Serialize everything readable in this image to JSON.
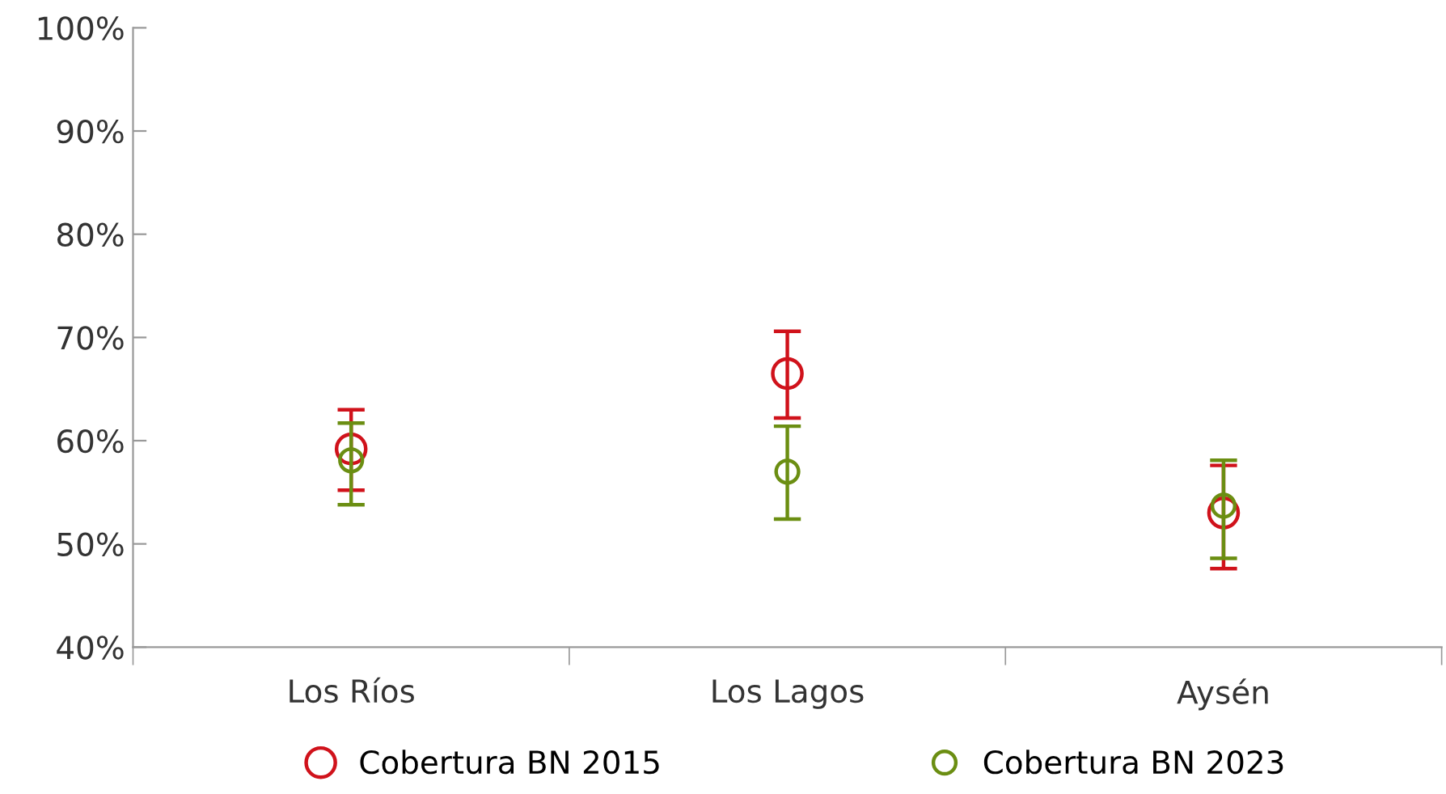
{
  "chart_data": {
    "type": "scatter",
    "categories": [
      "Los Ríos",
      "Los Lagos",
      "Aysén"
    ],
    "series": [
      {
        "name": "Cobertura BN 2015",
        "color": "#d0121b",
        "values": [
          59.2,
          66.5,
          53.0
        ],
        "errors": [
          [
            55.2,
            63.0
          ],
          [
            62.2,
            70.6
          ],
          [
            47.6,
            57.6
          ]
        ]
      },
      {
        "name": "Cobertura BN 2023",
        "color": "#6b8e12",
        "values": [
          58.1,
          57.0,
          53.7
        ],
        "errors": [
          [
            53.8,
            61.7
          ],
          [
            52.4,
            61.4
          ],
          [
            48.6,
            58.1
          ]
        ]
      }
    ],
    "ylim": [
      40,
      100
    ],
    "yticks": [
      {
        "value": 40,
        "label": "40%"
      },
      {
        "value": 50,
        "label": "50%"
      },
      {
        "value": 60,
        "label": "60%"
      },
      {
        "value": 70,
        "label": "70%"
      },
      {
        "value": 80,
        "label": "80%"
      },
      {
        "value": 90,
        "label": "90%"
      },
      {
        "value": 100,
        "label": "100%"
      }
    ],
    "marker": "circle",
    "legend": "bottom",
    "grid": false
  }
}
